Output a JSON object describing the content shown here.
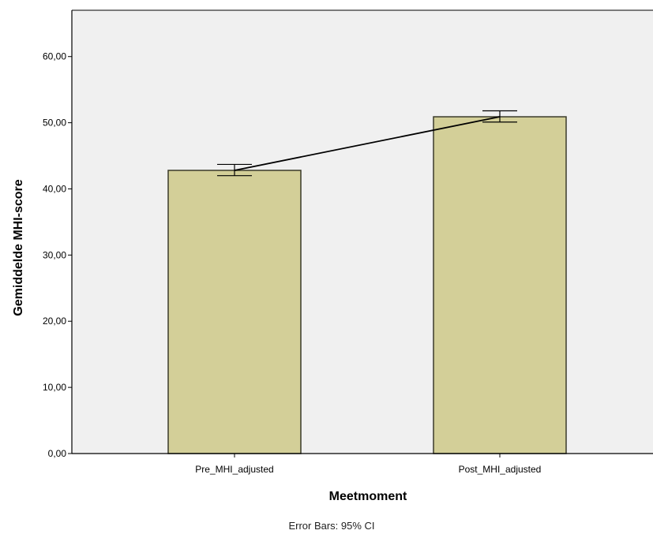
{
  "chart_data": {
    "type": "bar",
    "categories": [
      "Pre_MHI_adjusted",
      "Post_MHI_adjusted"
    ],
    "values": [
      42.8,
      50.9
    ],
    "error_bars": [
      {
        "low": 42.0,
        "high": 43.7
      },
      {
        "low": 50.1,
        "high": 51.8
      }
    ],
    "connecting_line": true,
    "xlabel": "Meetmoment",
    "ylabel": "Gemiddelde MHI-score",
    "ylim": [
      0,
      67
    ],
    "yticks": [
      "0,00",
      "10,00",
      "20,00",
      "30,00",
      "40,00",
      "50,00",
      "60,00"
    ],
    "ytick_values": [
      0,
      10,
      20,
      30,
      40,
      50,
      60
    ],
    "footnote": "Error Bars: 95% CI",
    "grid": false,
    "colors": {
      "bar_fill": "#d3cf98",
      "bar_stroke": "#3a3a2a",
      "plot_background": "#f0f0f0",
      "line": "#000000"
    }
  }
}
